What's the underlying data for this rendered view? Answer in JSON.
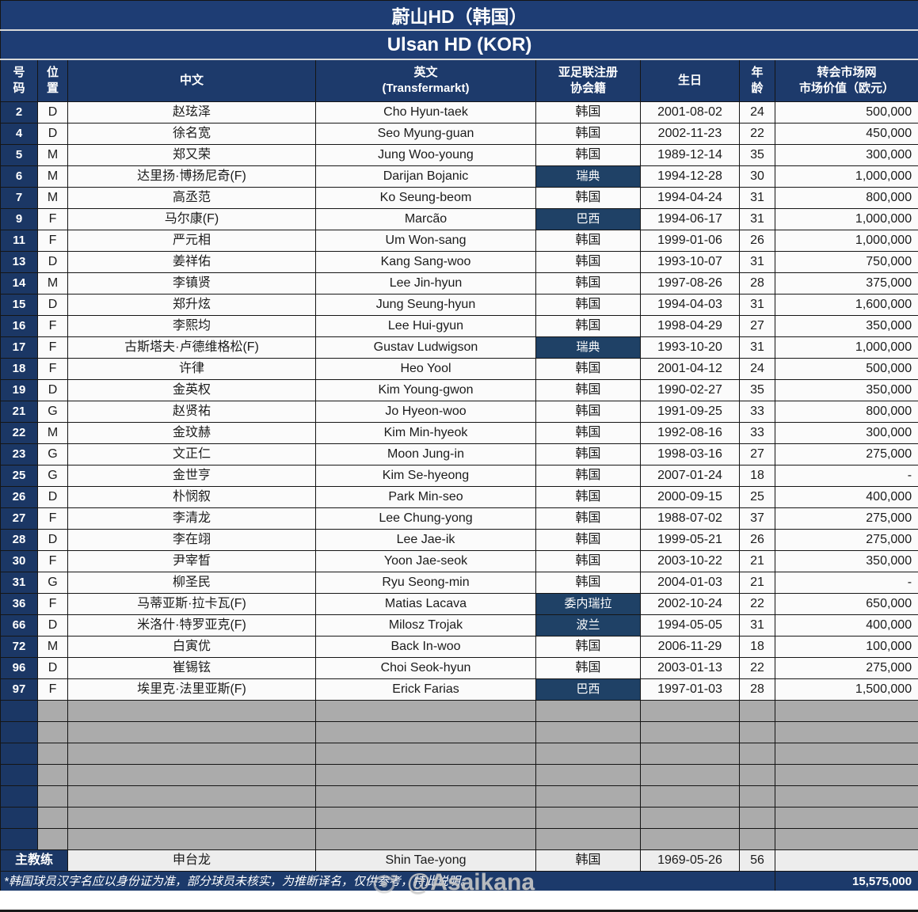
{
  "titles": {
    "cn": "蔚山HD（韩国）",
    "en": "Ulsan HD (KOR)"
  },
  "columns": [
    {
      "label": "号\n码"
    },
    {
      "label": "位\n置"
    },
    {
      "label": "中文"
    },
    {
      "label": "英文\n(Transfermarkt)"
    },
    {
      "label": "亚足联注册\n协会籍"
    },
    {
      "label": "生日"
    },
    {
      "label": "年\n龄"
    },
    {
      "label": "转会市场网\n市场价值（欧元）"
    }
  ],
  "players": [
    {
      "num": "2",
      "pos": "D",
      "name_cn": "赵玹泽",
      "name_en": "Cho Hyun-taek",
      "assoc": "韩国",
      "assoc_foreign": false,
      "dob": "2001-08-02",
      "age": "24",
      "value": "500,000"
    },
    {
      "num": "4",
      "pos": "D",
      "name_cn": "徐名宽",
      "name_en": "Seo Myung-guan",
      "assoc": "韩国",
      "assoc_foreign": false,
      "dob": "2002-11-23",
      "age": "22",
      "value": "450,000"
    },
    {
      "num": "5",
      "pos": "M",
      "name_cn": "郑又荣",
      "name_en": "Jung Woo-young",
      "assoc": "韩国",
      "assoc_foreign": false,
      "dob": "1989-12-14",
      "age": "35",
      "value": "300,000"
    },
    {
      "num": "6",
      "pos": "M",
      "name_cn": "达里扬·博扬尼奇(F)",
      "name_en": "Darijan Bojanic",
      "assoc": "瑞典",
      "assoc_foreign": true,
      "dob": "1994-12-28",
      "age": "30",
      "value": "1,000,000"
    },
    {
      "num": "7",
      "pos": "M",
      "name_cn": "高丞范",
      "name_en": "Ko Seung-beom",
      "assoc": "韩国",
      "assoc_foreign": false,
      "dob": "1994-04-24",
      "age": "31",
      "value": "800,000"
    },
    {
      "num": "9",
      "pos": "F",
      "name_cn": "马尔康(F)",
      "name_en": "Marcão",
      "assoc": "巴西",
      "assoc_foreign": true,
      "dob": "1994-06-17",
      "age": "31",
      "value": "1,000,000"
    },
    {
      "num": "11",
      "pos": "F",
      "name_cn": "严元相",
      "name_en": "Um Won-sang",
      "assoc": "韩国",
      "assoc_foreign": false,
      "dob": "1999-01-06",
      "age": "26",
      "value": "1,000,000"
    },
    {
      "num": "13",
      "pos": "D",
      "name_cn": "姜祥佑",
      "name_en": "Kang Sang-woo",
      "assoc": "韩国",
      "assoc_foreign": false,
      "dob": "1993-10-07",
      "age": "31",
      "value": "750,000"
    },
    {
      "num": "14",
      "pos": "M",
      "name_cn": "李镇贤",
      "name_en": "Lee Jin-hyun",
      "assoc": "韩国",
      "assoc_foreign": false,
      "dob": "1997-08-26",
      "age": "28",
      "value": "375,000"
    },
    {
      "num": "15",
      "pos": "D",
      "name_cn": "郑升炫",
      "name_en": "Jung Seung-hyun",
      "assoc": "韩国",
      "assoc_foreign": false,
      "dob": "1994-04-03",
      "age": "31",
      "value": "1,600,000"
    },
    {
      "num": "16",
      "pos": "F",
      "name_cn": "李熙均",
      "name_en": "Lee Hui-gyun",
      "assoc": "韩国",
      "assoc_foreign": false,
      "dob": "1998-04-29",
      "age": "27",
      "value": "350,000"
    },
    {
      "num": "17",
      "pos": "F",
      "name_cn": "古斯塔夫·卢德维格松(F)",
      "name_en": "Gustav Ludwigson",
      "assoc": "瑞典",
      "assoc_foreign": true,
      "dob": "1993-10-20",
      "age": "31",
      "value": "1,000,000"
    },
    {
      "num": "18",
      "pos": "F",
      "name_cn": "许律",
      "name_en": "Heo Yool",
      "assoc": "韩国",
      "assoc_foreign": false,
      "dob": "2001-04-12",
      "age": "24",
      "value": "500,000"
    },
    {
      "num": "19",
      "pos": "D",
      "name_cn": "金英权",
      "name_en": "Kim Young-gwon",
      "assoc": "韩国",
      "assoc_foreign": false,
      "dob": "1990-02-27",
      "age": "35",
      "value": "350,000"
    },
    {
      "num": "21",
      "pos": "G",
      "name_cn": "赵贤祐",
      "name_en": "Jo Hyeon-woo",
      "assoc": "韩国",
      "assoc_foreign": false,
      "dob": "1991-09-25",
      "age": "33",
      "value": "800,000"
    },
    {
      "num": "22",
      "pos": "M",
      "name_cn": "金玟赫",
      "name_en": "Kim Min-hyeok",
      "assoc": "韩国",
      "assoc_foreign": false,
      "dob": "1992-08-16",
      "age": "33",
      "value": "300,000"
    },
    {
      "num": "23",
      "pos": "G",
      "name_cn": "文正仁",
      "name_en": "Moon Jung-in",
      "assoc": "韩国",
      "assoc_foreign": false,
      "dob": "1998-03-16",
      "age": "27",
      "value": "275,000"
    },
    {
      "num": "25",
      "pos": "G",
      "name_cn": "金世亨",
      "name_en": "Kim Se-hyeong",
      "assoc": "韩国",
      "assoc_foreign": false,
      "dob": "2007-01-24",
      "age": "18",
      "value": "-"
    },
    {
      "num": "26",
      "pos": "D",
      "name_cn": "朴悯叙",
      "name_en": "Park Min-seo",
      "assoc": "韩国",
      "assoc_foreign": false,
      "dob": "2000-09-15",
      "age": "25",
      "value": "400,000"
    },
    {
      "num": "27",
      "pos": "F",
      "name_cn": "李清龙",
      "name_en": "Lee Chung-yong",
      "assoc": "韩国",
      "assoc_foreign": false,
      "dob": "1988-07-02",
      "age": "37",
      "value": "275,000"
    },
    {
      "num": "28",
      "pos": "D",
      "name_cn": "李在翊",
      "name_en": "Lee Jae-ik",
      "assoc": "韩国",
      "assoc_foreign": false,
      "dob": "1999-05-21",
      "age": "26",
      "value": "275,000"
    },
    {
      "num": "30",
      "pos": "F",
      "name_cn": "尹宰晳",
      "name_en": "Yoon Jae-seok",
      "assoc": "韩国",
      "assoc_foreign": false,
      "dob": "2003-10-22",
      "age": "21",
      "value": "350,000"
    },
    {
      "num": "31",
      "pos": "G",
      "name_cn": "柳圣民",
      "name_en": "Ryu Seong-min",
      "assoc": "韩国",
      "assoc_foreign": false,
      "dob": "2004-01-03",
      "age": "21",
      "value": "-"
    },
    {
      "num": "36",
      "pos": "F",
      "name_cn": "马蒂亚斯·拉卡瓦(F)",
      "name_en": "Matias Lacava",
      "assoc": "委内瑞拉",
      "assoc_foreign": true,
      "dob": "2002-10-24",
      "age": "22",
      "value": "650,000"
    },
    {
      "num": "66",
      "pos": "D",
      "name_cn": "米洛什·特罗亚克(F)",
      "name_en": "Milosz Trojak",
      "assoc": "波兰",
      "assoc_foreign": true,
      "dob": "1994-05-05",
      "age": "31",
      "value": "400,000"
    },
    {
      "num": "72",
      "pos": "M",
      "name_cn": "白寅优",
      "name_en": "Back In-woo",
      "assoc": "韩国",
      "assoc_foreign": false,
      "dob": "2006-11-29",
      "age": "18",
      "value": "100,000"
    },
    {
      "num": "96",
      "pos": "D",
      "name_cn": "崔锡铉",
      "name_en": "Choi Seok-hyun",
      "assoc": "韩国",
      "assoc_foreign": false,
      "dob": "2003-01-13",
      "age": "22",
      "value": "275,000"
    },
    {
      "num": "97",
      "pos": "F",
      "name_cn": "埃里克·法里亚斯(F)",
      "name_en": "Erick Farias",
      "assoc": "巴西",
      "assoc_foreign": true,
      "dob": "1997-01-03",
      "age": "28",
      "value": "1,500,000"
    }
  ],
  "empty_row_count": 7,
  "coach": {
    "role": "主教练",
    "name_cn": "申台龙",
    "name_en": "Shin Tae-yong",
    "assoc": "韩国",
    "dob": "1969-05-26",
    "age": "56",
    "value": ""
  },
  "footer": {
    "note": "*韩国球员汉字名应以身份证为准，部分球员未核实，为推断译名，仅供参考，特此说明。",
    "total": "15,575,000"
  },
  "watermark": {
    "handle": "@Asaikana"
  },
  "colors": {
    "navy_title": "#1e3d74",
    "navy_header": "#1d3a6b",
    "navy_number_col": "#1b3765",
    "navy_highlight": "#1f4166",
    "empty_gray": "#ababab",
    "coach_gray": "#ededed",
    "grid": "#151515"
  }
}
